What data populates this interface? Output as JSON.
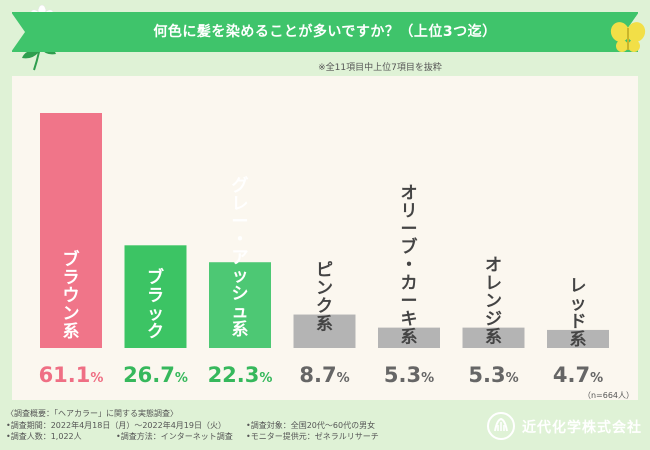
{
  "header": {
    "title": "何色に髪を染めることが多いですか？（上位3つ迄）",
    "note": "※全11項目中上位7項目を抜粋"
  },
  "chart_data": {
    "type": "bar",
    "title": "何色に髪を染めることが多いですか？（上位3つ迄）",
    "categories": [
      "ブラウン系",
      "ブラック",
      "グレー・アッシュ系",
      "ピンク系",
      "オリーブ・カーキ系",
      "オレンジ系",
      "レッド系"
    ],
    "values": [
      61.1,
      26.7,
      22.3,
      8.7,
      5.3,
      5.3,
      4.7
    ],
    "value_labels": [
      {
        "num": "61.1",
        "unit": "%"
      },
      {
        "num": "26.7",
        "unit": "%"
      },
      {
        "num": "22.3",
        "unit": "%"
      },
      {
        "num": "8.7",
        "unit": "%"
      },
      {
        "num": "5.3",
        "unit": "%"
      },
      {
        "num": "5.3",
        "unit": "%"
      },
      {
        "num": "4.7",
        "unit": "%"
      }
    ],
    "bar_colors": [
      "#f07589",
      "#3cc464",
      "#4dc874",
      "#b4b4b4",
      "#b4b4b4",
      "#b4b4b4",
      "#b4b4b4"
    ],
    "value_colors": [
      "#ef6f84",
      "#36b85c",
      "#36b85c",
      "#666666",
      "#666666",
      "#666666",
      "#666666"
    ],
    "ylim": [
      0,
      61.1
    ],
    "sample_size": "（n=664人）",
    "xlabel": "",
    "ylabel": ""
  },
  "footer": {
    "overview": "〈調査概要：「ヘアカラー」に関する実態調査〉",
    "period": "•調査期間：2022年4月18日（月）〜2022年4月19日（火）",
    "target": "•調査対象：全国20代〜60代の男女",
    "count": "•調査人数：1,022人",
    "method": "•調査方法：インターネット調査",
    "provider": "•モニター提供元：ゼネラルリサーチ"
  },
  "brand": {
    "name": "近代化学株式会社",
    "color": "#5fc57e"
  }
}
